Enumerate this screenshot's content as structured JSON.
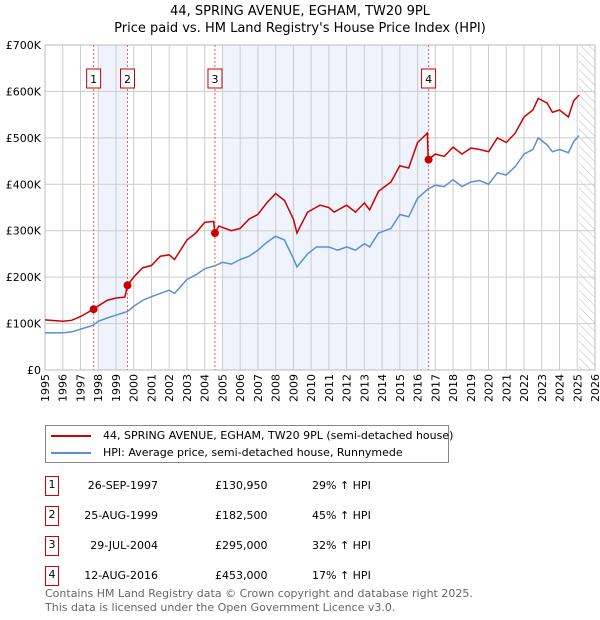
{
  "chart_data": {
    "type": "line",
    "title": "44, SPRING AVENUE, EGHAM, TW20 9PL",
    "subtitle": "Price paid vs. HM Land Registry's House Price Index (HPI)",
    "xlim": [
      1995,
      2026
    ],
    "ylim": [
      0,
      700000
    ],
    "y_ticks": [
      {
        "v": 0,
        "label": "£0"
      },
      {
        "v": 100000,
        "label": "£100K"
      },
      {
        "v": 200000,
        "label": "£200K"
      },
      {
        "v": 300000,
        "label": "£300K"
      },
      {
        "v": 400000,
        "label": "£400K"
      },
      {
        "v": 500000,
        "label": "£500K"
      },
      {
        "v": 600000,
        "label": "£600K"
      },
      {
        "v": 700000,
        "label": "£700K"
      }
    ],
    "x_ticks": [
      "1995",
      "1996",
      "1997",
      "1998",
      "1999",
      "2000",
      "2001",
      "2002",
      "2003",
      "2004",
      "2005",
      "2006",
      "2007",
      "2008",
      "2009",
      "2010",
      "2011",
      "2012",
      "2013",
      "2014",
      "2015",
      "2016",
      "2017",
      "2018",
      "2019",
      "2020",
      "2021",
      "2022",
      "2023",
      "2024",
      "2025",
      "2026"
    ],
    "grid": true,
    "series": [
      {
        "name": "44, SPRING AVENUE, EGHAM, TW20 9PL (semi-detached house)",
        "color": "#cc0000",
        "points": [
          [
            1995,
            108
          ],
          [
            1996,
            105
          ],
          [
            1996.5,
            107
          ],
          [
            1997,
            115
          ],
          [
            1997.74,
            131
          ],
          [
            1998,
            138
          ],
          [
            1998.5,
            150
          ],
          [
            1999,
            155
          ],
          [
            1999.5,
            157
          ],
          [
            1999.65,
            182.5
          ],
          [
            2000,
            200
          ],
          [
            2000.5,
            220
          ],
          [
            2001,
            225
          ],
          [
            2001.5,
            245
          ],
          [
            2002,
            248
          ],
          [
            2002.3,
            238
          ],
          [
            2003,
            280
          ],
          [
            2003.5,
            295
          ],
          [
            2004,
            318
          ],
          [
            2004.5,
            320
          ],
          [
            2004.58,
            295
          ],
          [
            2004.8,
            310
          ],
          [
            2005.5,
            300
          ],
          [
            2006,
            305
          ],
          [
            2006.5,
            325
          ],
          [
            2007,
            335
          ],
          [
            2007.5,
            360
          ],
          [
            2008,
            380
          ],
          [
            2008.5,
            365
          ],
          [
            2009,
            325
          ],
          [
            2009.2,
            295
          ],
          [
            2009.8,
            340
          ],
          [
            2010.5,
            355
          ],
          [
            2011,
            350
          ],
          [
            2011.3,
            340
          ],
          [
            2012,
            355
          ],
          [
            2012.5,
            340
          ],
          [
            2013,
            360
          ],
          [
            2013.3,
            345
          ],
          [
            2013.8,
            385
          ],
          [
            2014.5,
            405
          ],
          [
            2015,
            440
          ],
          [
            2015.5,
            435
          ],
          [
            2016,
            490
          ],
          [
            2016.55,
            510
          ],
          [
            2016.6,
            453
          ],
          [
            2017,
            465
          ],
          [
            2017.5,
            460
          ],
          [
            2018,
            480
          ],
          [
            2018.5,
            465
          ],
          [
            2019,
            478
          ],
          [
            2019.5,
            475
          ],
          [
            2020,
            470
          ],
          [
            2020.5,
            500
          ],
          [
            2021,
            490
          ],
          [
            2021.5,
            510
          ],
          [
            2022,
            545
          ],
          [
            2022.5,
            560
          ],
          [
            2022.8,
            585
          ],
          [
            2023.3,
            575
          ],
          [
            2023.6,
            555
          ],
          [
            2024,
            560
          ],
          [
            2024.5,
            545
          ],
          [
            2024.8,
            580
          ],
          [
            2025.1,
            592
          ]
        ]
      },
      {
        "name": "HPI: Average price, semi-detached house, Runnymede",
        "color": "#5b8fd4",
        "points": [
          [
            1995,
            80
          ],
          [
            1996,
            80
          ],
          [
            1996.5,
            82
          ],
          [
            1997,
            88
          ],
          [
            1997.7,
            96
          ],
          [
            1998,
            105
          ],
          [
            1998.5,
            112
          ],
          [
            1999,
            118
          ],
          [
            1999.65,
            126
          ],
          [
            2000,
            137
          ],
          [
            2000.5,
            150
          ],
          [
            2001,
            158
          ],
          [
            2001.5,
            165
          ],
          [
            2002,
            172
          ],
          [
            2002.3,
            165
          ],
          [
            2003,
            195
          ],
          [
            2003.5,
            205
          ],
          [
            2004,
            218
          ],
          [
            2004.6,
            225
          ],
          [
            2005,
            232
          ],
          [
            2005.5,
            228
          ],
          [
            2006,
            238
          ],
          [
            2006.5,
            245
          ],
          [
            2007,
            258
          ],
          [
            2007.5,
            275
          ],
          [
            2008,
            288
          ],
          [
            2008.5,
            280
          ],
          [
            2009,
            240
          ],
          [
            2009.2,
            222
          ],
          [
            2009.8,
            250
          ],
          [
            2010.3,
            265
          ],
          [
            2011,
            265
          ],
          [
            2011.5,
            258
          ],
          [
            2012,
            265
          ],
          [
            2012.5,
            258
          ],
          [
            2013,
            272
          ],
          [
            2013.3,
            265
          ],
          [
            2013.8,
            295
          ],
          [
            2014.5,
            305
          ],
          [
            2015,
            335
          ],
          [
            2015.5,
            330
          ],
          [
            2016,
            370
          ],
          [
            2016.6,
            390
          ],
          [
            2017,
            398
          ],
          [
            2017.5,
            395
          ],
          [
            2018,
            410
          ],
          [
            2018.5,
            395
          ],
          [
            2019,
            405
          ],
          [
            2019.5,
            408
          ],
          [
            2020,
            400
          ],
          [
            2020.5,
            425
          ],
          [
            2021,
            420
          ],
          [
            2021.5,
            438
          ],
          [
            2022,
            465
          ],
          [
            2022.5,
            475
          ],
          [
            2022.8,
            500
          ],
          [
            2023.3,
            485
          ],
          [
            2023.6,
            470
          ],
          [
            2024,
            475
          ],
          [
            2024.5,
            468
          ],
          [
            2024.8,
            492
          ],
          [
            2025.1,
            505
          ]
        ]
      }
    ],
    "sales": [
      {
        "n": "1",
        "date": "26-SEP-1997",
        "x": 1997.74,
        "price": 130950,
        "price_label": "£130,950",
        "hpi": "29% ↑ HPI"
      },
      {
        "n": "2",
        "date": "25-AUG-1999",
        "x": 1999.65,
        "price": 182500,
        "price_label": "£182,500",
        "hpi": "45% ↑ HPI"
      },
      {
        "n": "3",
        "date": "29-JUL-2004",
        "x": 2004.58,
        "price": 295000,
        "price_label": "£295,000",
        "hpi": "32% ↑ HPI"
      },
      {
        "n": "4",
        "date": "12-AUG-2016",
        "x": 2016.62,
        "price": 453000,
        "price_label": "£453,000",
        "hpi": "17% ↑ HPI"
      }
    ],
    "shaded": [
      [
        1998,
        1999.65
      ],
      [
        2005,
        2016.62
      ]
    ],
    "forecast_from": 2025.1
  },
  "footer": {
    "line1": "Contains HM Land Registry data © Crown copyright and database right 2025.",
    "line2": "This data is licensed under the Open Government Licence v3.0."
  }
}
